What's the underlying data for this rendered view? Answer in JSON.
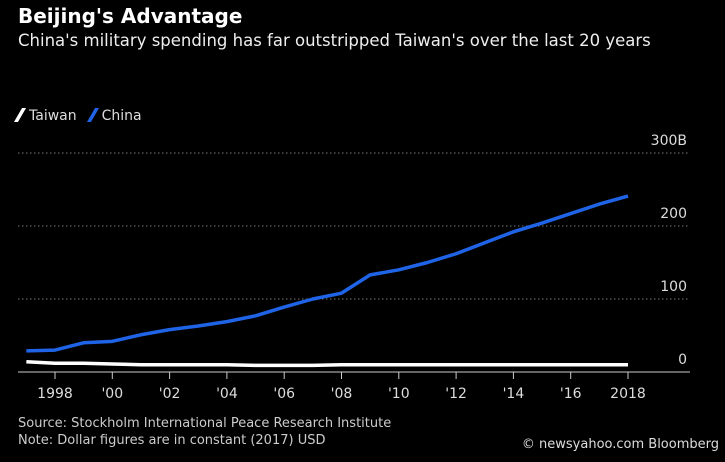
{
  "chart_data": {
    "type": "line",
    "title": "Beijing's Advantage",
    "subtitle": "China's military spending has far outstripped Taiwan's over the last 20 years",
    "x": [
      1997,
      1998,
      1999,
      2000,
      2001,
      2002,
      2003,
      2004,
      2005,
      2006,
      2007,
      2008,
      2009,
      2010,
      2011,
      2012,
      2013,
      2014,
      2015,
      2016,
      2017,
      2018
    ],
    "series": [
      {
        "name": "Taiwan",
        "color": "#ffffff",
        "values": [
          14,
          12,
          12,
          11,
          10,
          10,
          10,
          10,
          9,
          9,
          9,
          10,
          10,
          10,
          10,
          10,
          10,
          10,
          10,
          10,
          10,
          10
        ]
      },
      {
        "name": "China",
        "color": "#1f63e6",
        "values": [
          29,
          30,
          40,
          42,
          51,
          58,
          63,
          69,
          77,
          89,
          100,
          108,
          133,
          140,
          150,
          162,
          177,
          192,
          204,
          217,
          230,
          241
        ]
      }
    ],
    "ylim": [
      0,
      300
    ],
    "yticks": [
      0,
      100,
      200,
      300
    ],
    "ytick_labels": [
      "0",
      "100",
      "200",
      "300B"
    ],
    "xticks": [
      1998,
      2000,
      2002,
      2004,
      2006,
      2008,
      2010,
      2012,
      2014,
      2016,
      2018
    ],
    "xtick_labels": [
      "1998",
      "'00",
      "'02",
      "'04",
      "'06",
      "'08",
      "'10",
      "'12",
      "'14",
      "'16",
      "2018"
    ],
    "grid": true,
    "legend_placement": "top-left"
  },
  "footer": {
    "source": "Source: Stockholm International Peace Research Institute",
    "note": "Note: Dollar figures are in constant (2017) USD"
  },
  "watermark": "© newsyahoo.com Bloomberg"
}
